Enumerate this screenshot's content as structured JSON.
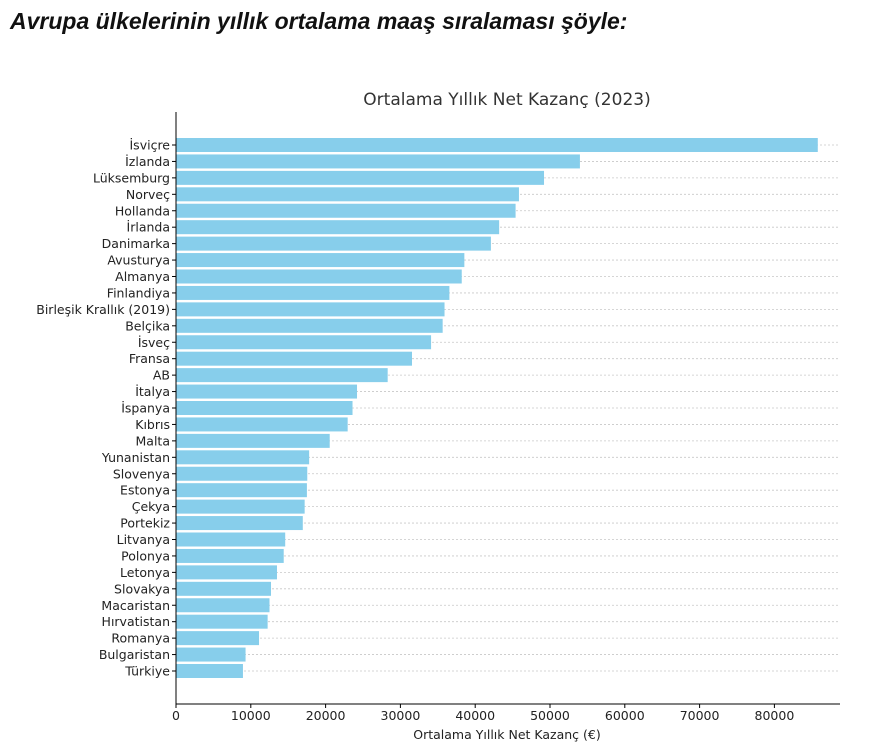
{
  "heading": "Avrupa ülkelerinin yıllık ortalama maaş sıralaması şöyle:",
  "chart_data": {
    "type": "bar",
    "orientation": "horizontal",
    "title": "Ortalama Yıllık Net Kazanç (2023)",
    "xlabel": "Ortalama Yıllık Net Kazanç (€)",
    "ylabel": "",
    "xlim": [
      0,
      89000
    ],
    "xticks": [
      0,
      10000,
      20000,
      30000,
      40000,
      50000,
      60000,
      70000,
      80000
    ],
    "grid": "horizontal dashed",
    "bar_color": "#87ceeb",
    "categories": [
      "İsviçre",
      "İzlanda",
      "Lüksemburg",
      "Norveç",
      "Hollanda",
      "İrlanda",
      "Danimarka",
      "Avusturya",
      "Almanya",
      "Finlandiya",
      "Birleşik Krallık (2019)",
      "Belçika",
      "İsveç",
      "Fransa",
      "AB",
      "İtalya",
      "İspanya",
      "Kıbrıs",
      "Malta",
      "Yunanistan",
      "Slovenya",
      "Estonya",
      "Çekya",
      "Portekiz",
      "Litvanya",
      "Polonya",
      "Letonya",
      "Slovakya",
      "Macaristan",
      "Hırvatistan",
      "Romanya",
      "Bulgaristan",
      "Türkiye"
    ],
    "values": [
      85800,
      54000,
      49200,
      45850,
      45400,
      43200,
      42100,
      38550,
      38200,
      36550,
      35900,
      35650,
      34100,
      31550,
      28300,
      24200,
      23600,
      22950,
      20550,
      17800,
      17550,
      17500,
      17200,
      16950,
      14600,
      14400,
      13500,
      12700,
      12500,
      12250,
      11100,
      9300,
      8950
    ]
  }
}
